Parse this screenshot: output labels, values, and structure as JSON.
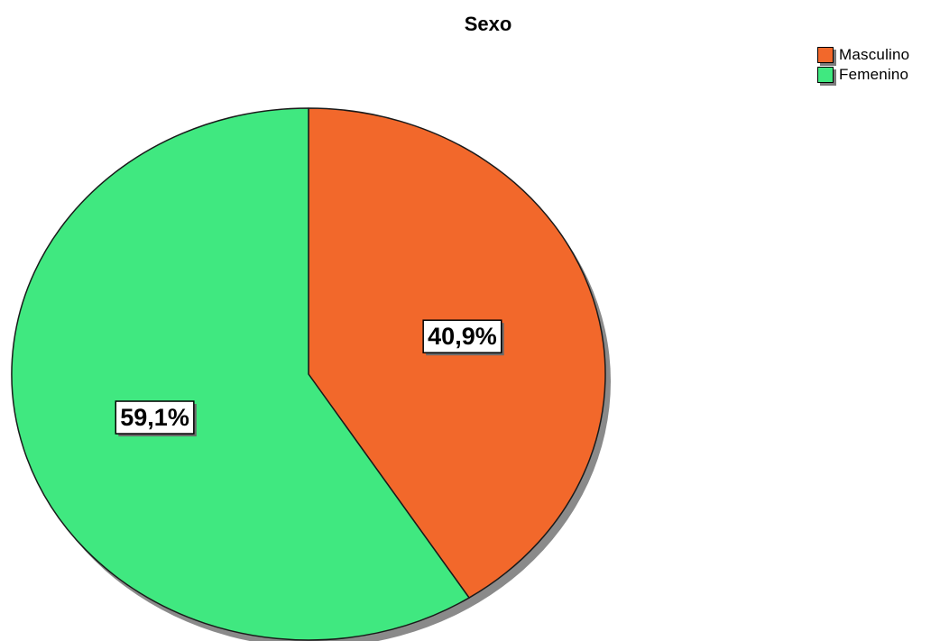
{
  "chart_data": {
    "type": "pie",
    "title": "Sexo",
    "series": [
      {
        "name": "Masculino",
        "value": 40.9,
        "label": "40,9%",
        "color": "#F2682B"
      },
      {
        "name": "Femenino",
        "value": 59.1,
        "label": "59,1%",
        "color": "#40E880"
      }
    ],
    "legend_position": "top-right",
    "start_angle_deg": 0,
    "direction": "clockwise"
  }
}
